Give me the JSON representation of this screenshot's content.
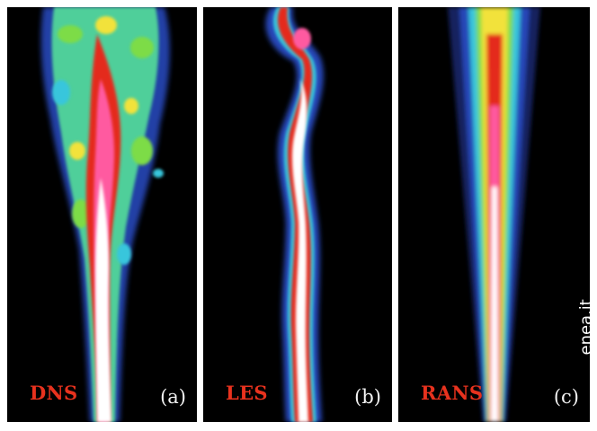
{
  "panels": [
    {
      "method": "DNS",
      "letter": "(a)"
    },
    {
      "method": "LES",
      "letter": "(b)"
    },
    {
      "method": "RANS",
      "letter": "(c)"
    }
  ],
  "watermark": "enea.it",
  "colors": {
    "background": "#000000",
    "method_label": "#e8321e",
    "panel_letter": "#f2f2f2",
    "watermark": "#ffffff",
    "colormap": [
      "#13205f",
      "#2747b8",
      "#38c6dc",
      "#7ddc46",
      "#f2e23a",
      "#e42a1f",
      "#ff5aa0",
      "#ffffff"
    ]
  }
}
